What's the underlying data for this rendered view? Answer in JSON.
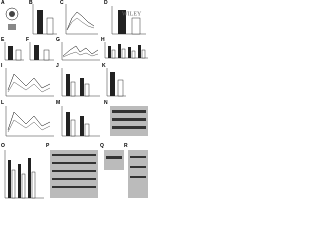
{
  "panels": {
    "labels": [
      "A",
      "B",
      "C",
      "D",
      "E",
      "F",
      "G",
      "H",
      "I",
      "J",
      "K",
      "L",
      "M",
      "N",
      "O",
      "P",
      "Q",
      "R"
    ]
  },
  "watermark": "WILEY"
}
